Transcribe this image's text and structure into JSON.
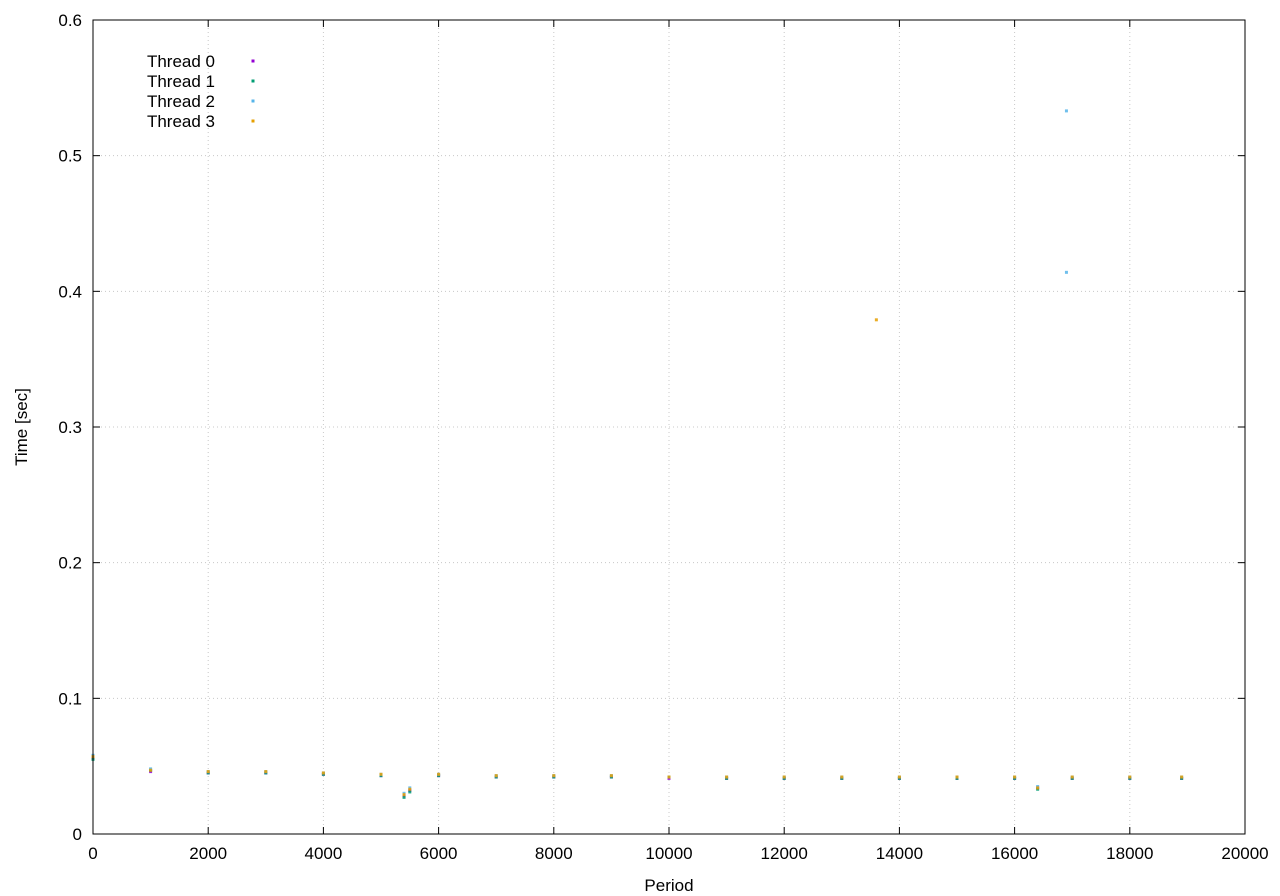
{
  "chart_data": {
    "type": "scatter",
    "title": "",
    "xlabel": "Period",
    "ylabel": "Time [sec]",
    "xlim": [
      0,
      20000
    ],
    "ylim": [
      0,
      0.6
    ],
    "x_ticks": [
      0,
      2000,
      4000,
      6000,
      8000,
      10000,
      12000,
      14000,
      16000,
      18000,
      20000
    ],
    "x_tick_labels": [
      "0",
      "2000",
      "4000",
      "6000",
      "8000",
      "10000",
      "12000",
      "14000",
      "16000",
      "18000",
      "20000"
    ],
    "y_ticks": [
      0,
      0.1,
      0.2,
      0.3,
      0.4,
      0.5,
      0.6
    ],
    "y_tick_labels": [
      "0",
      "0.1",
      "0.2",
      "0.3",
      "0.4",
      "0.5",
      "0.6"
    ],
    "grid": true,
    "legend_position": "top-left",
    "series": [
      {
        "name": "Thread 0",
        "color": "#9400d3",
        "x": [
          0,
          1000,
          2000,
          3000,
          4000,
          5000,
          5400,
          5500,
          6000,
          7000,
          8000,
          9000,
          10000,
          11000,
          12000,
          13000,
          14000,
          15000,
          16000,
          16400,
          17000,
          18000,
          18900
        ],
        "y": [
          0.056,
          0.046,
          0.045,
          0.045,
          0.044,
          0.043,
          0.028,
          0.032,
          0.043,
          0.042,
          0.042,
          0.042,
          0.041,
          0.041,
          0.041,
          0.041,
          0.041,
          0.041,
          0.041,
          0.034,
          0.041,
          0.041,
          0.041
        ]
      },
      {
        "name": "Thread 1",
        "color": "#009e73",
        "x": [
          0,
          1000,
          2000,
          3000,
          4000,
          5000,
          5400,
          5500,
          6000,
          7000,
          8000,
          9000,
          10000,
          11000,
          12000,
          13000,
          14000,
          15000,
          16000,
          16400,
          17000,
          18000,
          18900
        ],
        "y": [
          0.055,
          0.047,
          0.045,
          0.045,
          0.044,
          0.043,
          0.027,
          0.031,
          0.043,
          0.042,
          0.042,
          0.042,
          0.042,
          0.041,
          0.041,
          0.041,
          0.041,
          0.041,
          0.041,
          0.033,
          0.041,
          0.041,
          0.041
        ]
      },
      {
        "name": "Thread 2",
        "color": "#56b4e9",
        "x": [
          0,
          1000,
          2000,
          3000,
          4000,
          5000,
          5400,
          5500,
          6000,
          7000,
          8000,
          9000,
          10000,
          11000,
          12000,
          13000,
          14000,
          15000,
          16000,
          16400,
          16900,
          16900,
          17000,
          18000,
          18900
        ],
        "y": [
          0.058,
          0.048,
          0.046,
          0.046,
          0.045,
          0.044,
          0.03,
          0.034,
          0.044,
          0.043,
          0.043,
          0.043,
          0.042,
          0.042,
          0.042,
          0.042,
          0.042,
          0.042,
          0.042,
          0.035,
          0.533,
          0.414,
          0.042,
          0.042,
          0.042
        ]
      },
      {
        "name": "Thread 3",
        "color": "#e69f00",
        "x": [
          0,
          1000,
          2000,
          3000,
          4000,
          5000,
          5400,
          5500,
          6000,
          7000,
          8000,
          9000,
          10000,
          11000,
          12000,
          13000,
          13600,
          14000,
          15000,
          16000,
          16400,
          17000,
          18000,
          18900
        ],
        "y": [
          0.057,
          0.047,
          0.046,
          0.046,
          0.045,
          0.044,
          0.029,
          0.033,
          0.044,
          0.043,
          0.043,
          0.043,
          0.042,
          0.042,
          0.042,
          0.042,
          0.379,
          0.042,
          0.042,
          0.042,
          0.034,
          0.042,
          0.042,
          0.042
        ]
      }
    ]
  }
}
